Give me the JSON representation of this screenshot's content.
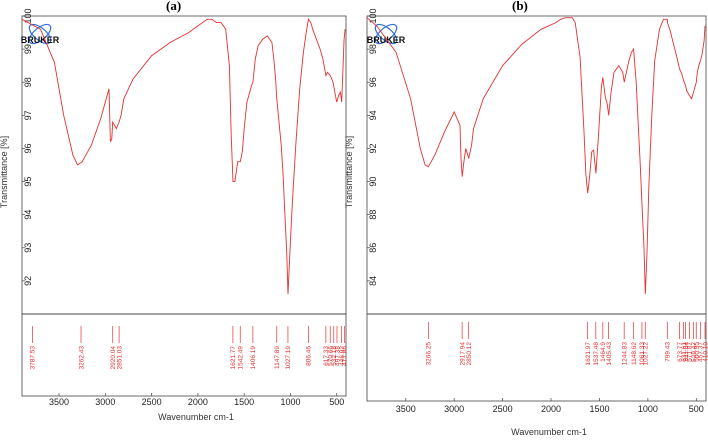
{
  "chart_data": [
    {
      "panel_label": "(a)",
      "type": "line",
      "logo": "BRUKER",
      "xlabel": "Wavenumber cm-1",
      "ylabel": "Transmittance [%]",
      "xlim": [
        3900,
        400
      ],
      "ylim": [
        91,
        100
      ],
      "x_ticks": [
        3500,
        3000,
        2500,
        2000,
        1500,
        1000,
        500
      ],
      "y_ticks": [
        92,
        93,
        94,
        95,
        96,
        97,
        98,
        99,
        100
      ],
      "series_color": "#e53030",
      "spectrum": {
        "x": [
          3900,
          3700,
          3550,
          3450,
          3350,
          3300,
          3250,
          3150,
          3050,
          2960,
          2945,
          2930,
          2920,
          2900,
          2880,
          2851,
          2830,
          2800,
          2700,
          2500,
          2300,
          2100,
          2000,
          1900,
          1850,
          1800,
          1750,
          1700,
          1660,
          1640,
          1621,
          1600,
          1570,
          1542,
          1520,
          1500,
          1470,
          1450,
          1420,
          1406,
          1380,
          1350,
          1300,
          1250,
          1200,
          1180,
          1160,
          1147,
          1120,
          1100,
          1080,
          1060,
          1040,
          1027,
          1010,
          990,
          970,
          940,
          900,
          860,
          830,
          806,
          780,
          760,
          720,
          680,
          650,
          617,
          600,
          570,
          540,
          500,
          480,
          460,
          446,
          430,
          420,
          410
        ],
        "y": [
          99.9,
          99.6,
          98.6,
          97.0,
          95.8,
          95.5,
          95.6,
          96.1,
          96.9,
          97.8,
          96.2,
          96.3,
          96.8,
          96.7,
          96.6,
          96.8,
          97.0,
          97.5,
          98.1,
          98.8,
          99.2,
          99.5,
          99.7,
          99.9,
          99.9,
          99.8,
          99.8,
          99.6,
          98.5,
          96.4,
          95.0,
          95.0,
          95.6,
          95.6,
          95.9,
          96.6,
          97.4,
          97.6,
          97.9,
          98.0,
          98.7,
          99.1,
          99.3,
          99.4,
          99.2,
          98.7,
          98.1,
          97.5,
          96.7,
          96.1,
          95.2,
          94.0,
          92.8,
          91.6,
          92.6,
          93.8,
          94.8,
          96.2,
          97.8,
          98.9,
          99.5,
          99.9,
          99.8,
          99.6,
          99.3,
          99.0,
          98.7,
          98.2,
          98.3,
          98.2,
          98.0,
          97.4,
          97.6,
          97.7,
          97.4,
          98.6,
          99.3,
          99.6
        ]
      },
      "peaks": [
        "3787.53",
        "3262.43",
        "2920.04",
        "2851.03",
        "1621.77",
        "1542.49",
        "1406.19",
        "1147.89",
        "1027.19",
        "806.46",
        "617.33",
        "570.66",
        "532.18",
        "497.38",
        "446.92",
        "417.86"
      ],
      "peak_positions": [
        3787.53,
        3262.43,
        2920.04,
        2851.03,
        1621.77,
        1542.49,
        1406.19,
        1147.89,
        1027.19,
        806.46,
        617.33,
        570.66,
        532.18,
        497.38,
        446.92,
        417.86
      ]
    },
    {
      "panel_label": "(b)",
      "type": "line",
      "logo": "BRUKER",
      "xlabel": "Wavenumber cm-1",
      "ylabel": "Transmittance [%]",
      "xlim": [
        3900,
        400
      ],
      "ylim": [
        82,
        100
      ],
      "x_ticks": [
        3500,
        3000,
        2500,
        2000,
        1500,
        1000,
        500
      ],
      "y_ticks": [
        84,
        86,
        88,
        90,
        92,
        94,
        96,
        98,
        100
      ],
      "series_color": "#e53030",
      "spectrum": {
        "x": [
          3900,
          3800,
          3600,
          3450,
          3350,
          3300,
          3266,
          3200,
          3100,
          3000,
          2940,
          2930,
          2917,
          2900,
          2880,
          2850,
          2820,
          2800,
          2700,
          2500,
          2300,
          2100,
          1950,
          1900,
          1850,
          1780,
          1750,
          1700,
          1660,
          1640,
          1621,
          1600,
          1580,
          1560,
          1537,
          1510,
          1480,
          1465,
          1440,
          1420,
          1405,
          1380,
          1350,
          1300,
          1260,
          1244,
          1200,
          1170,
          1148,
          1120,
          1100,
          1080,
          1061,
          1040,
          1027,
          1010,
          990,
          960,
          930,
          880,
          840,
          800,
          799,
          770,
          740,
          700,
          673,
          650,
          631,
          611,
          600,
          571,
          550,
          529,
          500,
          490,
          470,
          457,
          440,
          420,
          410
        ],
        "y": [
          99.9,
          99.4,
          97.8,
          95.0,
          92.0,
          91.0,
          90.9,
          91.6,
          93.0,
          94.2,
          93.4,
          91.4,
          90.3,
          91.2,
          92.0,
          91.4,
          92.2,
          93.2,
          95.0,
          97.0,
          98.3,
          99.2,
          99.6,
          99.8,
          99.9,
          99.9,
          99.6,
          97.5,
          93.0,
          90.4,
          89.3,
          90.4,
          91.8,
          91.9,
          90.5,
          92.8,
          95.7,
          96.3,
          95.1,
          94.7,
          94.0,
          95.4,
          96.6,
          97.0,
          96.6,
          96.0,
          97.2,
          97.8,
          98.0,
          95.9,
          93.5,
          91.2,
          88.6,
          86.0,
          83.2,
          85.5,
          89.8,
          94.0,
          97.3,
          99.2,
          99.8,
          99.8,
          99.6,
          99.1,
          98.4,
          97.5,
          96.8,
          96.5,
          96.1,
          95.8,
          95.5,
          95.2,
          95.0,
          95.4,
          96.0,
          96.6,
          97.1,
          97.3,
          97.7,
          98.5,
          99.4
        ]
      },
      "peaks": [
        "3266.25",
        "2917.94",
        "2850.12",
        "1621.97",
        "1537.48",
        "1464.9",
        "1405.43",
        "1244.83",
        "1148.62",
        "1061.33",
        "1027.22",
        "799.43",
        "673.77",
        "631.61",
        "611.84",
        "571.87",
        "529.47",
        "500.95",
        "457.37",
        "410.10"
      ],
      "peak_positions": [
        3266.25,
        2917.94,
        2850.12,
        1621.97,
        1537.48,
        1464.9,
        1405.43,
        1244.83,
        1148.62,
        1061.33,
        1027.22,
        799.43,
        673.77,
        631.61,
        611.84,
        571.87,
        529.47,
        500.95,
        457.37,
        410.1
      ]
    }
  ]
}
